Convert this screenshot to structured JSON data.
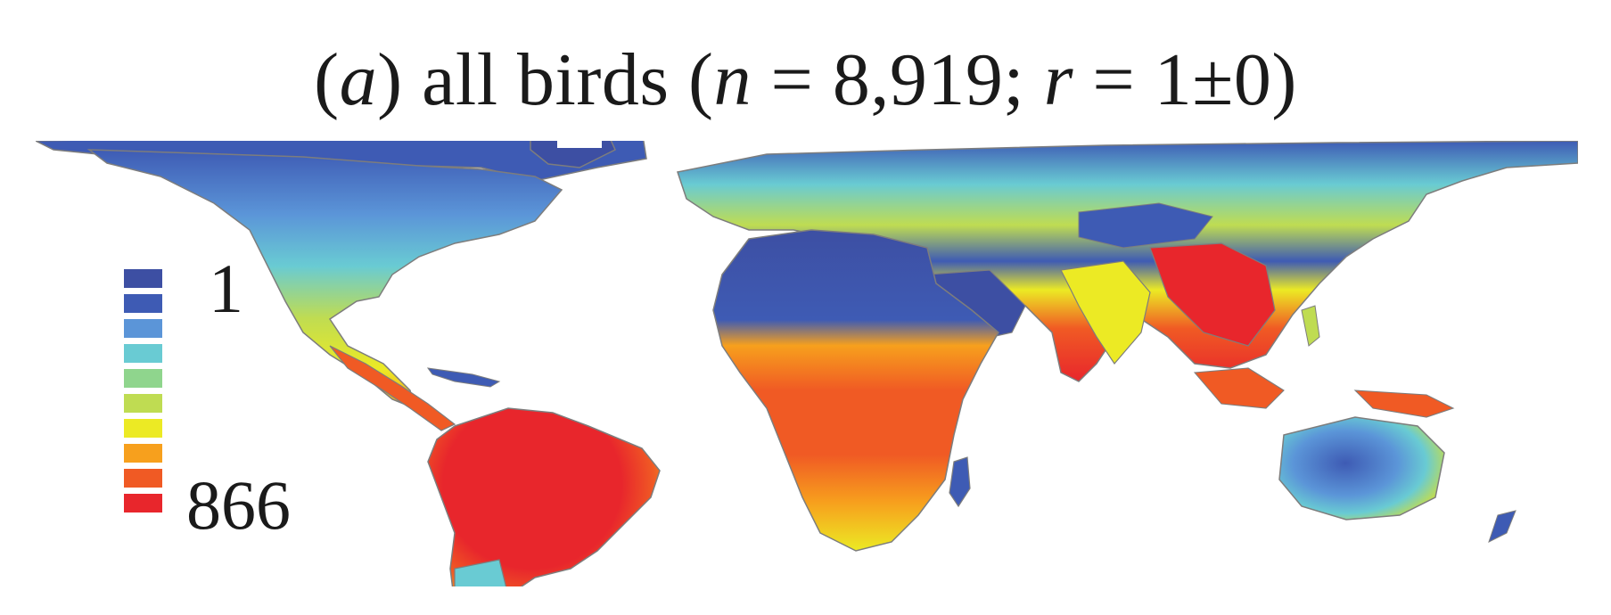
{
  "title": {
    "panel": "a",
    "text_open": "(",
    "text_after_panel": ") all birds (",
    "n_symbol": "n",
    "n_eq": " = 8,919; ",
    "r_symbol": "r",
    "r_eq": " = 1±0)"
  },
  "legend": {
    "min_label": "1",
    "max_label": "866",
    "colors": [
      "#3d4fa3",
      "#3e5bb4",
      "#5b95d8",
      "#69cbd3",
      "#8fd58d",
      "#bfdc52",
      "#ecea24",
      "#f7a01d",
      "#f05a24",
      "#e8262c"
    ]
  },
  "map": {
    "ocean_color": "#ffffff",
    "border_color": "#7d7d7d"
  }
}
